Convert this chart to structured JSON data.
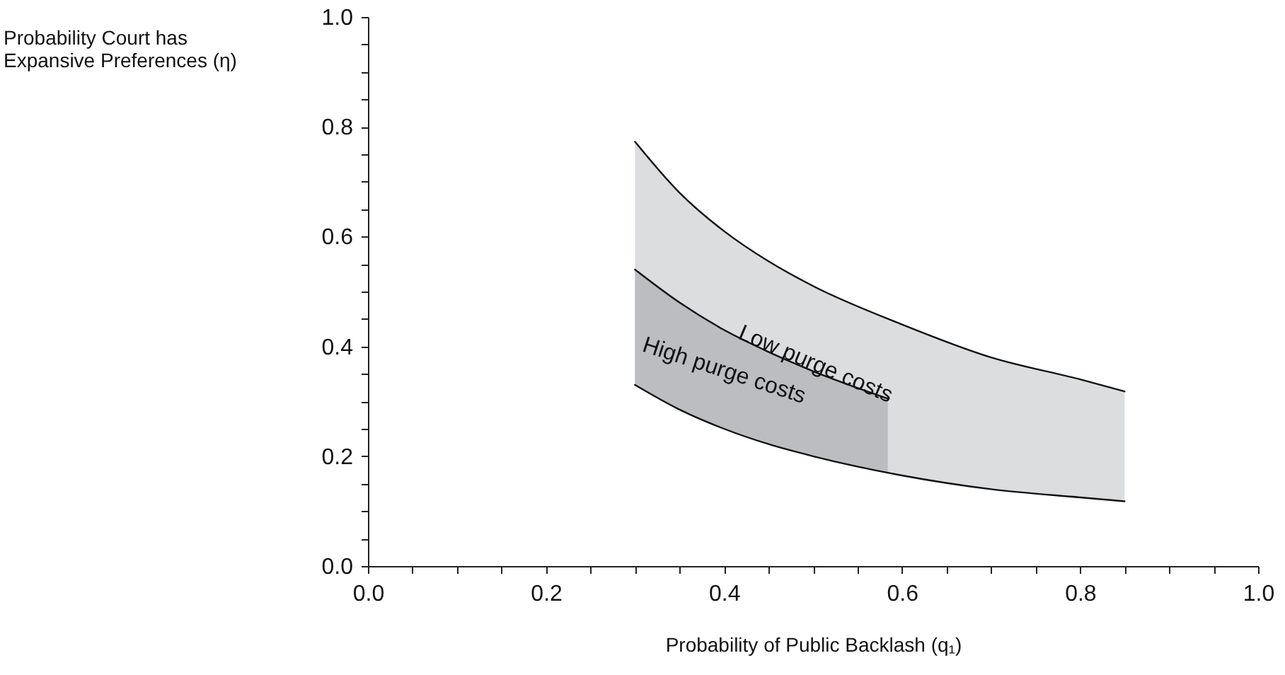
{
  "chart_data": {
    "type": "line",
    "xlabel": "Probability of Public Backlash (q₁)",
    "ylabel": "Probability Court has\nExpansive Preferences (η)",
    "series": [
      {
        "color": "#111111",
        "x": [
          0.3,
          0.35,
          0.4,
          0.45,
          0.5,
          0.6,
          0.7,
          0.8,
          0.85
        ],
        "values": [
          0.773,
          0.68,
          0.61,
          0.555,
          0.51,
          0.44,
          0.38,
          0.34,
          0.318
        ],
        "upper": [
          0.773,
          0.68,
          0.61,
          0.555,
          0.51,
          0.44,
          0.38,
          0.34,
          0.318
        ],
        "lower": [
          0.33,
          0.285,
          0.25,
          0.222,
          0.2,
          0.165,
          0.14,
          0.125,
          0.118
        ]
      },
      {
        "color": "#111111",
        "x": [
          0.3,
          0.35,
          0.4,
          0.45,
          0.5,
          0.584
        ],
        "values": [
          0.54,
          0.48,
          0.43,
          0.39,
          0.355,
          0.305
        ],
        "upper": [
          0.54,
          0.48,
          0.43,
          0.39,
          0.355,
          0.305
        ],
        "lower": [
          0.33,
          0.285,
          0.25,
          0.222,
          0.2,
          0.17
        ]
      },
      {
        "color": "#111111",
        "x": [
          0.3,
          0.35,
          0.4,
          0.45,
          0.5,
          0.6,
          0.7,
          0.8,
          0.85
        ],
        "values": [
          0.33,
          0.285,
          0.25,
          0.222,
          0.2,
          0.165,
          0.14,
          0.125,
          0.118
        ]
      }
    ],
    "annotations": [
      {
        "text": "Low purge costs",
        "x": 0.503,
        "y": 0.368
      },
      {
        "text": "High purge costs",
        "x": 0.413,
        "y": 0.42
      }
    ],
    "xlim": [
      0,
      1
    ],
    "ylim": [
      0,
      1
    ],
    "xticks": [
      {
        "value": 0,
        "label": "0.0"
      },
      {
        "value": 0.05,
        "label": null
      },
      {
        "value": 0.1,
        "label": null
      },
      {
        "value": 0.15,
        "label": null
      },
      0.2,
      {
        "value": 0.25,
        "label": null
      },
      {
        "value": 0.3,
        "label": null
      },
      {
        "value": 0.35,
        "label": null
      },
      0.4,
      {
        "value": 0.45,
        "label": null
      },
      {
        "value": 0.5,
        "label": null
      },
      {
        "value": 0.55,
        "label": null
      },
      0.6,
      {
        "value": 0.65,
        "label": null
      },
      {
        "value": 0.7,
        "label": null
      },
      {
        "value": 0.75,
        "label": null
      },
      0.8,
      {
        "value": 0.85,
        "label": null
      },
      {
        "value": 0.9,
        "label": null
      },
      {
        "value": 0.95,
        "label": null
      },
      {
        "value": 1,
        "label": "1.0"
      }
    ],
    "yticks": [
      {
        "value": 0,
        "label": "0.0"
      },
      {
        "value": 0.05,
        "label": null
      },
      {
        "value": 0.1,
        "label": null
      },
      {
        "value": 0.15,
        "label": null
      },
      0.2,
      {
        "value": 0.25,
        "label": null
      },
      {
        "value": 0.3,
        "label": null
      },
      {
        "value": 0.35,
        "label": null
      },
      0.4,
      {
        "value": 0.45,
        "label": null
      },
      {
        "value": 0.5,
        "label": null
      },
      {
        "value": 0.55,
        "label": null
      },
      0.6,
      {
        "value": 0.65,
        "label": null
      },
      {
        "value": 0.7,
        "label": null
      },
      {
        "value": 0.75,
        "label": null
      },
      0.8,
      {
        "value": 0.85,
        "label": null
      },
      {
        "value": 0.9,
        "label": null
      },
      {
        "value": 0.95,
        "label": null
      },
      {
        "value": 1,
        "label": "1.0"
      }
    ],
    "grid": false
  }
}
